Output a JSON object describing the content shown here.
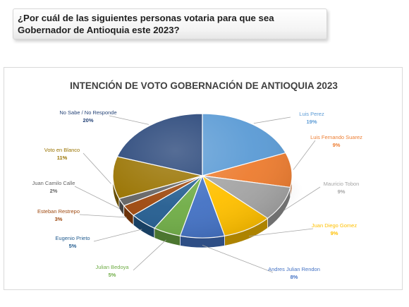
{
  "question": "¿Por cuál de las siguientes personas votaria para que sea Gobernador de Antioquia este 2023?",
  "chart_data": {
    "type": "pie",
    "title": "INTENCIÓN DE VOTO GOBERNACIÓN DE ANTIOQUIA 2023",
    "slices": [
      {
        "label": "Luis Perez",
        "value": 19,
        "value_label": "19%",
        "color": "#5B9BD5"
      },
      {
        "label": "Luis Fernando Suarez",
        "value": 9,
        "value_label": "9%",
        "color": "#ED7D31"
      },
      {
        "label": "Mauricio Tobon",
        "value": 9,
        "value_label": "9%",
        "color": "#A5A5A5"
      },
      {
        "label": "Juan Diego Gomez",
        "value": 9,
        "value_label": "9%",
        "color": "#FFC000"
      },
      {
        "label": "Andres Julian Rendon",
        "value": 8,
        "value_label": "8%",
        "color": "#4472C4"
      },
      {
        "label": "Julian Bedoya",
        "value": 5,
        "value_label": "5%",
        "color": "#70AD47"
      },
      {
        "label": "Eugenio Prieto",
        "value": 5,
        "value_label": "5%",
        "color": "#255E91"
      },
      {
        "label": "Esteban Restrepo",
        "value": 3,
        "value_label": "3%",
        "color": "#9E480E"
      },
      {
        "label": "Juan Camilo Calle",
        "value": 2,
        "value_label": "2%",
        "color": "#636363"
      },
      {
        "label": "Voto en Blanco",
        "value": 11,
        "value_label": "11%",
        "color": "#997300"
      },
      {
        "label": "No Sabe / No Responde",
        "value": 20,
        "value_label": "20%",
        "color": "#264478"
      }
    ]
  }
}
